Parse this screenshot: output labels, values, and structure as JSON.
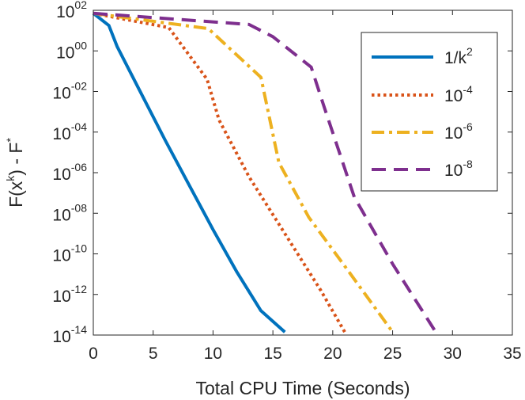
{
  "chart_data": {
    "type": "line",
    "xlabel": "Total CPU Time (Seconds)",
    "ylabel": {
      "base": "F(x",
      "sup1": "k",
      "mid": ") - F",
      "sup2": "*"
    },
    "xlim": [
      0,
      35
    ],
    "ylim_log10": [
      -14,
      2
    ],
    "x_ticks": [
      "0",
      "5",
      "10",
      "15",
      "20",
      "25",
      "30",
      "35"
    ],
    "y_ticks": [
      {
        "base": "10",
        "exp": "02"
      },
      {
        "base": "10",
        "exp": "00"
      },
      {
        "base": "10",
        "exp": "-02"
      },
      {
        "base": "10",
        "exp": "-04"
      },
      {
        "base": "10",
        "exp": "-06"
      },
      {
        "base": "10",
        "exp": "-08"
      },
      {
        "base": "10",
        "exp": "-10"
      },
      {
        "base": "10",
        "exp": "-12"
      },
      {
        "base": "10",
        "exp": "-14"
      }
    ],
    "legend_position": "top-right",
    "series": [
      {
        "name": "1/k",
        "name_sup": "2",
        "color": "#0072BD",
        "style": "solid",
        "x": [
          0,
          1.3,
          2.0,
          4.0,
          6.0,
          8.0,
          10.0,
          12.0,
          14.0,
          16.0
        ],
        "log10_y": [
          1.85,
          1.25,
          0.2,
          -2.1,
          -4.4,
          -6.6,
          -8.8,
          -10.9,
          -12.8,
          -13.85
        ]
      },
      {
        "name": "10",
        "name_sup": "-4",
        "color": "#D95319",
        "style": "dotted",
        "x": [
          0,
          6.3,
          9.5,
          10.5,
          13.0,
          16.0,
          19.0,
          21.0
        ],
        "log10_y": [
          1.85,
          1.15,
          -1.4,
          -3.4,
          -6.2,
          -9.0,
          -11.8,
          -13.85
        ]
      },
      {
        "name": "10",
        "name_sup": "-6",
        "color": "#EDB120",
        "style": "dashdot",
        "x": [
          0,
          9.6,
          14.0,
          15.5,
          18.0,
          21.0,
          25.0
        ],
        "log10_y": [
          1.85,
          1.1,
          -1.3,
          -5.5,
          -8.2,
          -10.6,
          -13.85
        ]
      },
      {
        "name": "10",
        "name_sup": "-8",
        "color": "#7E2F8E",
        "style": "dashed",
        "x": [
          0,
          13.0,
          15.0,
          18.2,
          19.3,
          21.8,
          25.0,
          28.6
        ],
        "log10_y": [
          1.85,
          1.3,
          0.7,
          -0.8,
          -2.8,
          -7.2,
          -10.5,
          -13.85
        ]
      }
    ]
  }
}
